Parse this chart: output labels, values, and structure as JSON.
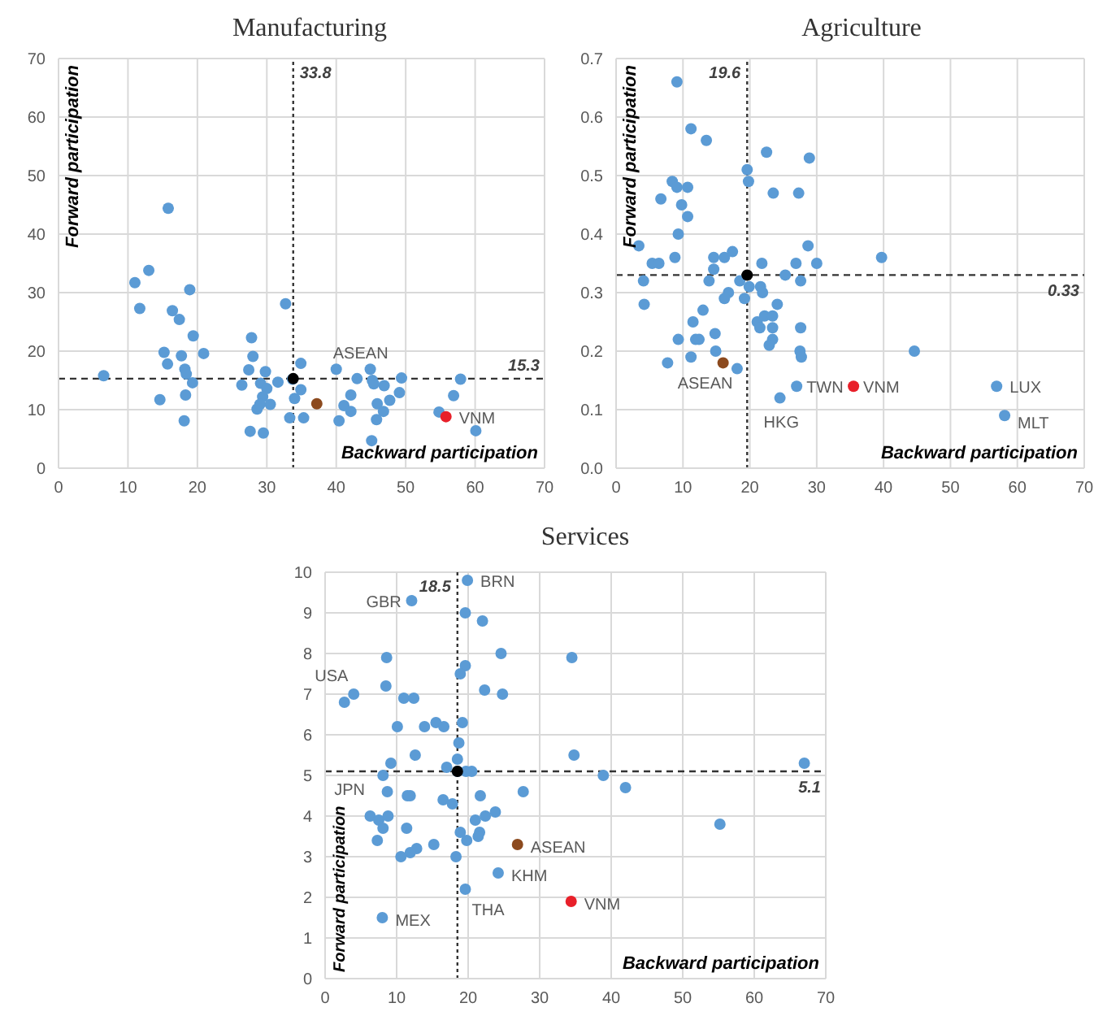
{
  "chart_data": [
    {
      "type": "scatter",
      "title": "Manufacturing",
      "xlabel": "Backward participation",
      "ylabel": "Forward participation",
      "xlim": [
        0,
        70
      ],
      "xticks": [
        0,
        10,
        20,
        30,
        40,
        50,
        60,
        70
      ],
      "ylim": [
        0,
        70
      ],
      "yticks": [
        0,
        10,
        20,
        30,
        40,
        50,
        60,
        70
      ],
      "grid": true,
      "marker": "circle",
      "series": [
        {
          "color": "#5b9bd5",
          "x": [
            6.5,
            15.8,
            11.0,
            13.0,
            11.7,
            18.9,
            16.4,
            17.4,
            19.4,
            20.9,
            15.2,
            15.7,
            17.7,
            18.2,
            18.4,
            19.3,
            14.6,
            18.3,
            18.1,
            27.8,
            28.0,
            27.4,
            26.4,
            29.1,
            29.8,
            30.0,
            29.4,
            28.6,
            29.0,
            30.5,
            27.6,
            29.5,
            31.6,
            32.7,
            33.7,
            34.0,
            33.3,
            34.9,
            34.9,
            35.3,
            40.0,
            43.0,
            42.1,
            41.1,
            40.4,
            42.1,
            44.9,
            45.2,
            45.4,
            46.9,
            45.9,
            47.7,
            46.8,
            45.8,
            45.1,
            49.4,
            49.1,
            54.8,
            57.9,
            56.9,
            60.1
          ],
          "values": [
            15.8,
            44.4,
            31.7,
            33.8,
            27.3,
            30.5,
            26.9,
            25.4,
            22.6,
            19.6,
            19.8,
            17.8,
            19.2,
            16.9,
            16.1,
            14.6,
            11.7,
            12.5,
            8.1,
            22.3,
            19.1,
            16.8,
            14.2,
            14.5,
            16.5,
            13.6,
            12.2,
            10.1,
            10.9,
            10.9,
            6.3,
            6.0,
            14.7,
            28.1,
            15.2,
            11.9,
            8.6,
            17.9,
            13.4,
            8.6,
            16.9,
            15.3,
            12.5,
            10.7,
            8.1,
            9.7,
            16.9,
            15.0,
            14.4,
            14.1,
            11.0,
            11.6,
            9.7,
            8.3,
            4.7,
            15.4,
            12.9,
            9.6,
            15.2,
            12.4,
            6.4
          ]
        },
        {
          "color": "#8c4a1e",
          "x": [
            37.2
          ],
          "values": [
            11.0
          ]
        },
        {
          "color": "#e8202a",
          "x": [
            55.8
          ],
          "values": [
            8.8
          ]
        },
        {
          "color": "#000000",
          "x": [
            33.8
          ],
          "values": [
            15.3
          ]
        }
      ],
      "ref_lines": [
        {
          "axis": "x",
          "value": 33.8,
          "label": "33.8",
          "color": "#333333",
          "line_style": "dotted"
        },
        {
          "axis": "y",
          "value": 15.3,
          "label": "15.3",
          "color": "#333333",
          "line_style": "dashed"
        }
      ],
      "annotations": [
        {
          "text": "ASEAN",
          "x": 37.2,
          "y": 11.0
        },
        {
          "text": "VNM",
          "x": 55.8,
          "y": 8.8
        }
      ]
    },
    {
      "type": "scatter",
      "title": "Agriculture",
      "xlabel": "Backward participation",
      "ylabel": "Forward participation",
      "xlim": [
        0,
        70
      ],
      "xticks": [
        0,
        10,
        20,
        30,
        40,
        50,
        60,
        70
      ],
      "ylim": [
        0,
        0.7
      ],
      "yticks": [
        {
          "value": 0,
          "label": "0.0"
        },
        0.1,
        0.2,
        0.3,
        0.4,
        0.5,
        0.6,
        0.7
      ],
      "grid": true,
      "marker": "circle",
      "series": [
        {
          "color": "#5b9bd5",
          "x": [
            9.1,
            11.2,
            13.5,
            8.4,
            9.1,
            10.7,
            6.7,
            9.8,
            10.7,
            9.3,
            3.4,
            8.8,
            5.4,
            6.4,
            4.1,
            4.2,
            14.6,
            16.2,
            17.4,
            14.6,
            13.9,
            18.5,
            16.8,
            16.2,
            13.0,
            11.5,
            11.9,
            9.3,
            12.4,
            14.8,
            14.9,
            11.2,
            7.7,
            18.1,
            19.6,
            19.8,
            22.5,
            28.9,
            23.5,
            27.3,
            21.8,
            26.9,
            30.0,
            28.7,
            25.3,
            27.6,
            39.7,
            19.9,
            21.6,
            21.9,
            19.2,
            24.1,
            21.1,
            22.2,
            23.4,
            21.5,
            23.4,
            27.6,
            23.4,
            22.9,
            27.5,
            27.7,
            44.6,
            24.5,
            27.0,
            56.9,
            58.1
          ],
          "values": [
            0.66,
            0.58,
            0.56,
            0.49,
            0.48,
            0.48,
            0.46,
            0.45,
            0.43,
            0.4,
            0.38,
            0.36,
            0.35,
            0.35,
            0.32,
            0.28,
            0.36,
            0.36,
            0.37,
            0.34,
            0.32,
            0.32,
            0.3,
            0.29,
            0.27,
            0.25,
            0.22,
            0.22,
            0.22,
            0.23,
            0.2,
            0.19,
            0.18,
            0.17,
            0.51,
            0.49,
            0.54,
            0.53,
            0.47,
            0.47,
            0.35,
            0.35,
            0.35,
            0.38,
            0.33,
            0.32,
            0.36,
            0.31,
            0.31,
            0.3,
            0.29,
            0.28,
            0.25,
            0.26,
            0.26,
            0.24,
            0.24,
            0.24,
            0.22,
            0.21,
            0.2,
            0.19,
            0.2,
            0.12,
            0.14,
            0.14,
            0.09
          ]
        },
        {
          "color": "#8c4a1e",
          "x": [
            16.0
          ],
          "values": [
            0.18
          ]
        },
        {
          "color": "#e8202a",
          "x": [
            35.5
          ],
          "values": [
            0.14
          ]
        },
        {
          "color": "#000000",
          "x": [
            19.6
          ],
          "values": [
            0.33
          ]
        }
      ],
      "ref_lines": [
        {
          "axis": "x",
          "value": 19.6,
          "label": "19.6",
          "color": "#333333",
          "line_style": "dotted"
        },
        {
          "axis": "y",
          "value": 0.33,
          "label": "0.33",
          "color": "#333333",
          "line_style": "dashed"
        }
      ],
      "annotations": [
        {
          "text": "ASEAN",
          "x": 16.0,
          "y": 0.18
        },
        {
          "text": "TWN",
          "x": 27.0,
          "y": 0.14
        },
        {
          "text": "VNM",
          "x": 35.5,
          "y": 0.14
        },
        {
          "text": "HKG",
          "x": 24.5,
          "y": 0.12
        },
        {
          "text": "LUX",
          "x": 56.9,
          "y": 0.14
        },
        {
          "text": "MLT",
          "x": 58.1,
          "y": 0.09
        }
      ]
    },
    {
      "type": "scatter",
      "title": "Services",
      "xlabel": "Backward participation",
      "ylabel": "Forward participation",
      "xlim": [
        0,
        70
      ],
      "xticks": [
        0,
        10,
        20,
        30,
        40,
        50,
        60,
        70
      ],
      "ylim": [
        0,
        10
      ],
      "yticks": [
        0,
        1,
        2,
        3,
        4,
        5,
        6,
        7,
        8,
        9,
        10
      ],
      "grid": true,
      "marker": "circle",
      "series": [
        {
          "color": "#5b9bd5",
          "x": [
            19.9,
            12.1,
            19.6,
            22.0,
            8.6,
            24.6,
            34.5,
            19.6,
            18.9,
            8.5,
            11.0,
            12.4,
            22.3,
            24.8,
            4.0,
            2.7,
            10.1,
            13.9,
            15.5,
            16.6,
            19.2,
            18.7,
            12.6,
            9.2,
            18.5,
            34.8,
            17.0,
            19.7,
            20.5,
            18.5,
            8.1,
            38.9,
            42.0,
            67.0,
            8.7,
            11.9,
            11.5,
            16.5,
            17.8,
            21.7,
            27.7,
            6.3,
            7.5,
            8.8,
            8.1,
            11.4,
            7.3,
            21.0,
            22.4,
            23.8,
            55.2,
            18.9,
            21.6,
            21.4,
            19.8,
            15.2,
            12.8,
            11.9,
            10.6,
            18.3,
            24.2,
            19.6,
            8.0
          ],
          "values": [
            9.8,
            9.3,
            9.0,
            8.8,
            7.9,
            8.0,
            7.9,
            7.7,
            7.5,
            7.2,
            6.9,
            6.9,
            7.1,
            7.0,
            7.0,
            6.8,
            6.2,
            6.2,
            6.3,
            6.2,
            6.3,
            5.8,
            5.5,
            5.3,
            5.4,
            5.5,
            5.2,
            5.1,
            5.1,
            5.1,
            5.0,
            5.0,
            4.7,
            5.3,
            4.6,
            4.5,
            4.5,
            4.4,
            4.3,
            4.5,
            4.6,
            4.0,
            3.9,
            4.0,
            3.7,
            3.7,
            3.4,
            3.9,
            4.0,
            4.1,
            3.8,
            3.6,
            3.6,
            3.5,
            3.4,
            3.3,
            3.2,
            3.1,
            3.0,
            3.0,
            2.6,
            2.2,
            1.5
          ]
        },
        {
          "color": "#8c4a1e",
          "x": [
            26.9
          ],
          "values": [
            3.3
          ]
        },
        {
          "color": "#e8202a",
          "x": [
            34.4
          ],
          "values": [
            1.9
          ]
        },
        {
          "color": "#000000",
          "x": [
            18.5
          ],
          "values": [
            5.1
          ]
        }
      ],
      "ref_lines": [
        {
          "axis": "x",
          "value": 18.5,
          "label": "18.5",
          "color": "#333333",
          "line_style": "dotted"
        },
        {
          "axis": "y",
          "value": 5.1,
          "label": "5.1",
          "color": "#333333",
          "line_style": "dashed"
        }
      ],
      "annotations": [
        {
          "text": "BRN",
          "x": 19.9,
          "y": 9.8
        },
        {
          "text": "GBR",
          "x": 12.1,
          "y": 9.3
        },
        {
          "text": "USA",
          "x": 4.0,
          "y": 7.0
        },
        {
          "text": "JPN",
          "x": 8.1,
          "y": 5.0
        },
        {
          "text": "ASEAN",
          "x": 26.9,
          "y": 3.3
        },
        {
          "text": "KHM",
          "x": 24.2,
          "y": 2.6
        },
        {
          "text": "THA",
          "x": 19.6,
          "y": 2.2
        },
        {
          "text": "VNM",
          "x": 34.4,
          "y": 1.9
        },
        {
          "text": "MEX",
          "x": 8.0,
          "y": 1.5
        }
      ]
    }
  ]
}
